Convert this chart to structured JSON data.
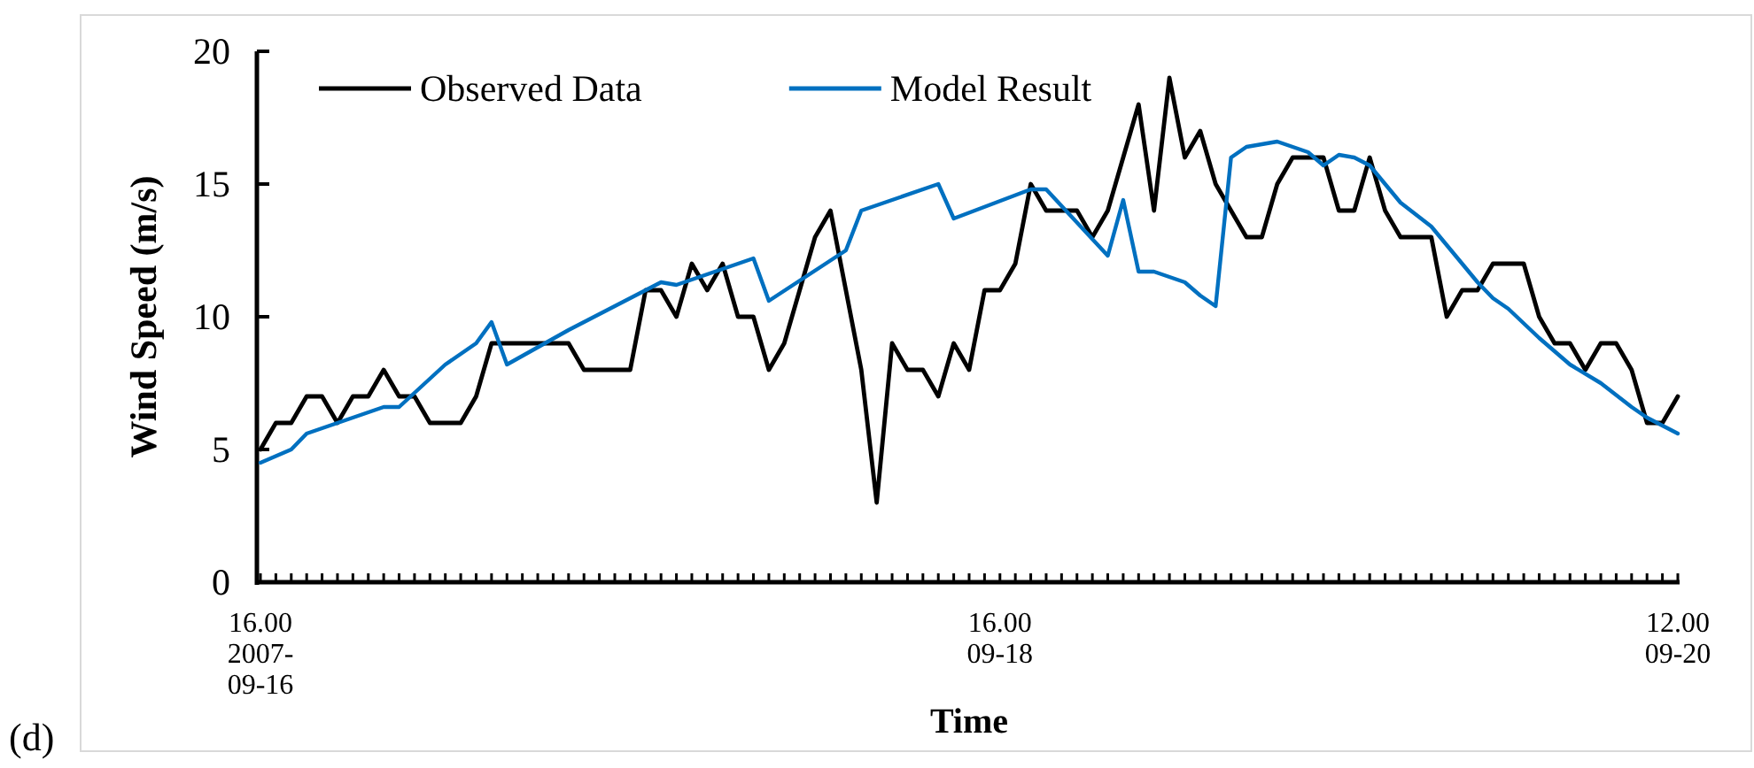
{
  "chart_data": {
    "type": "line",
    "xlabel": "Time",
    "ylabel": "Wind Speed (m/s)",
    "annotations": [
      "(d)"
    ],
    "legend": "top left",
    "xlim": [
      "2007-09-16T16:00",
      "2007-09-20T12:00"
    ],
    "ylim": [
      0,
      20
    ],
    "yticks": [
      0,
      5,
      10,
      15,
      20
    ],
    "xticks": [
      {
        "value": "2007-09-16T16:00",
        "label": "16.00\n2007-\n09-16"
      },
      {
        "value": "2007-09-16T17:00",
        "label": null
      },
      {
        "value": "2007-09-16T18:00",
        "label": null
      },
      {
        "value": "2007-09-16T19:00",
        "label": null
      },
      {
        "value": "2007-09-16T20:00",
        "label": null
      },
      {
        "value": "2007-09-16T21:00",
        "label": null
      },
      {
        "value": "2007-09-16T22:00",
        "label": null
      },
      {
        "value": "2007-09-16T23:00",
        "label": null
      },
      {
        "value": "2007-09-17T00:00",
        "label": null
      },
      {
        "value": "2007-09-17T01:00",
        "label": null
      },
      {
        "value": "2007-09-17T02:00",
        "label": null
      },
      {
        "value": "2007-09-17T03:00",
        "label": null
      },
      {
        "value": "2007-09-17T04:00",
        "label": null
      },
      {
        "value": "2007-09-17T05:00",
        "label": null
      },
      {
        "value": "2007-09-17T06:00",
        "label": null
      },
      {
        "value": "2007-09-17T07:00",
        "label": null
      },
      {
        "value": "2007-09-17T08:00",
        "label": null
      },
      {
        "value": "2007-09-17T09:00",
        "label": null
      },
      {
        "value": "2007-09-17T10:00",
        "label": null
      },
      {
        "value": "2007-09-17T11:00",
        "label": null
      },
      {
        "value": "2007-09-17T12:00",
        "label": null
      },
      {
        "value": "2007-09-17T13:00",
        "label": null
      },
      {
        "value": "2007-09-17T14:00",
        "label": null
      },
      {
        "value": "2007-09-17T15:00",
        "label": null
      },
      {
        "value": "2007-09-17T16:00",
        "label": null
      },
      {
        "value": "2007-09-17T17:00",
        "label": null
      },
      {
        "value": "2007-09-17T18:00",
        "label": null
      },
      {
        "value": "2007-09-17T19:00",
        "label": null
      },
      {
        "value": "2007-09-17T20:00",
        "label": null
      },
      {
        "value": "2007-09-17T21:00",
        "label": null
      },
      {
        "value": "2007-09-17T22:00",
        "label": null
      },
      {
        "value": "2007-09-17T23:00",
        "label": null
      },
      {
        "value": "2007-09-18T00:00",
        "label": null
      },
      {
        "value": "2007-09-18T01:00",
        "label": null
      },
      {
        "value": "2007-09-18T02:00",
        "label": null
      },
      {
        "value": "2007-09-18T03:00",
        "label": null
      },
      {
        "value": "2007-09-18T04:00",
        "label": null
      },
      {
        "value": "2007-09-18T05:00",
        "label": null
      },
      {
        "value": "2007-09-18T06:00",
        "label": null
      },
      {
        "value": "2007-09-18T07:00",
        "label": null
      },
      {
        "value": "2007-09-18T08:00",
        "label": null
      },
      {
        "value": "2007-09-18T09:00",
        "label": null
      },
      {
        "value": "2007-09-18T10:00",
        "label": null
      },
      {
        "value": "2007-09-18T11:00",
        "label": null
      },
      {
        "value": "2007-09-18T12:00",
        "label": null
      },
      {
        "value": "2007-09-18T13:00",
        "label": null
      },
      {
        "value": "2007-09-18T14:00",
        "label": null
      },
      {
        "value": "2007-09-18T15:00",
        "label": null
      },
      {
        "value": "2007-09-18T16:00",
        "label": "16.00\n09-18"
      },
      {
        "value": "2007-09-18T17:00",
        "label": null
      },
      {
        "value": "2007-09-18T18:00",
        "label": null
      },
      {
        "value": "2007-09-18T19:00",
        "label": null
      },
      {
        "value": "2007-09-18T20:00",
        "label": null
      },
      {
        "value": "2007-09-18T21:00",
        "label": null
      },
      {
        "value": "2007-09-18T22:00",
        "label": null
      },
      {
        "value": "2007-09-18T23:00",
        "label": null
      },
      {
        "value": "2007-09-19T00:00",
        "label": null
      },
      {
        "value": "2007-09-19T01:00",
        "label": null
      },
      {
        "value": "2007-09-19T02:00",
        "label": null
      },
      {
        "value": "2007-09-19T03:00",
        "label": null
      },
      {
        "value": "2007-09-19T04:00",
        "label": null
      },
      {
        "value": "2007-09-19T05:00",
        "label": null
      },
      {
        "value": "2007-09-19T06:00",
        "label": null
      },
      {
        "value": "2007-09-19T07:00",
        "label": null
      },
      {
        "value": "2007-09-19T08:00",
        "label": null
      },
      {
        "value": "2007-09-19T09:00",
        "label": null
      },
      {
        "value": "2007-09-19T10:00",
        "label": null
      },
      {
        "value": "2007-09-19T11:00",
        "label": null
      },
      {
        "value": "2007-09-19T12:00",
        "label": null
      },
      {
        "value": "2007-09-19T13:00",
        "label": null
      },
      {
        "value": "2007-09-19T14:00",
        "label": null
      },
      {
        "value": "2007-09-19T15:00",
        "label": null
      },
      {
        "value": "2007-09-19T16:00",
        "label": null
      },
      {
        "value": "2007-09-19T17:00",
        "label": null
      },
      {
        "value": "2007-09-19T18:00",
        "label": null
      },
      {
        "value": "2007-09-19T19:00",
        "label": null
      },
      {
        "value": "2007-09-19T20:00",
        "label": null
      },
      {
        "value": "2007-09-19T21:00",
        "label": null
      },
      {
        "value": "2007-09-19T22:00",
        "label": null
      },
      {
        "value": "2007-09-19T23:00",
        "label": null
      },
      {
        "value": "2007-09-20T00:00",
        "label": null
      },
      {
        "value": "2007-09-20T01:00",
        "label": null
      },
      {
        "value": "2007-09-20T02:00",
        "label": null
      },
      {
        "value": "2007-09-20T03:00",
        "label": null
      },
      {
        "value": "2007-09-20T04:00",
        "label": null
      },
      {
        "value": "2007-09-20T05:00",
        "label": null
      },
      {
        "value": "2007-09-20T06:00",
        "label": null
      },
      {
        "value": "2007-09-20T07:00",
        "label": null
      },
      {
        "value": "2007-09-20T08:00",
        "label": null
      },
      {
        "value": "2007-09-20T09:00",
        "label": null
      },
      {
        "value": "2007-09-20T10:00",
        "label": null
      },
      {
        "value": "2007-09-20T11:00",
        "label": null
      },
      {
        "value": "2007-09-20T12:00",
        "label": "12.00\n09-20"
      }
    ],
    "x": [
      "2007-09-16T16:00",
      "2007-09-16T17:00",
      "2007-09-16T18:00",
      "2007-09-16T19:00",
      "2007-09-16T20:00",
      "2007-09-16T21:00",
      "2007-09-16T22:00",
      "2007-09-16T23:00",
      "2007-09-17T00:00",
      "2007-09-17T01:00",
      "2007-09-17T02:00",
      "2007-09-17T03:00",
      "2007-09-17T04:00",
      "2007-09-17T05:00",
      "2007-09-17T06:00",
      "2007-09-17T07:00",
      "2007-09-17T08:00",
      "2007-09-17T09:00",
      "2007-09-17T10:00",
      "2007-09-17T11:00",
      "2007-09-17T12:00",
      "2007-09-17T13:00",
      "2007-09-17T14:00",
      "2007-09-17T15:00",
      "2007-09-17T16:00",
      "2007-09-17T17:00",
      "2007-09-17T18:00",
      "2007-09-17T19:00",
      "2007-09-17T20:00",
      "2007-09-17T21:00",
      "2007-09-17T22:00",
      "2007-09-17T23:00",
      "2007-09-18T00:00",
      "2007-09-18T01:00",
      "2007-09-18T02:00",
      "2007-09-18T03:00",
      "2007-09-18T04:00",
      "2007-09-18T05:00",
      "2007-09-18T06:00",
      "2007-09-18T07:00",
      "2007-09-18T08:00",
      "2007-09-18T09:00",
      "2007-09-18T10:00",
      "2007-09-18T11:00",
      "2007-09-18T12:00",
      "2007-09-18T13:00",
      "2007-09-18T14:00",
      "2007-09-18T15:00",
      "2007-09-18T16:00",
      "2007-09-18T17:00",
      "2007-09-18T18:00",
      "2007-09-18T19:00",
      "2007-09-18T20:00",
      "2007-09-18T21:00",
      "2007-09-18T22:00",
      "2007-09-18T23:00",
      "2007-09-19T00:00",
      "2007-09-19T01:00",
      "2007-09-19T02:00",
      "2007-09-19T03:00",
      "2007-09-19T04:00",
      "2007-09-19T05:00",
      "2007-09-19T06:00",
      "2007-09-19T07:00",
      "2007-09-19T08:00",
      "2007-09-19T09:00",
      "2007-09-19T10:00",
      "2007-09-19T11:00",
      "2007-09-19T12:00",
      "2007-09-19T13:00",
      "2007-09-19T14:00",
      "2007-09-19T15:00",
      "2007-09-19T16:00",
      "2007-09-19T17:00",
      "2007-09-19T18:00",
      "2007-09-19T19:00",
      "2007-09-19T20:00",
      "2007-09-19T21:00",
      "2007-09-19T22:00",
      "2007-09-19T23:00",
      "2007-09-20T00:00",
      "2007-09-20T01:00",
      "2007-09-20T02:00",
      "2007-09-20T03:00",
      "2007-09-20T04:00",
      "2007-09-20T05:00",
      "2007-09-20T06:00",
      "2007-09-20T07:00",
      "2007-09-20T08:00",
      "2007-09-20T09:00",
      "2007-09-20T10:00",
      "2007-09-20T11:00",
      "2007-09-20T12:00"
    ],
    "series": [
      {
        "name": "Observed Data",
        "color": "#000000",
        "values": [
          5,
          6,
          6,
          7,
          7,
          6,
          7,
          7,
          8,
          7,
          7,
          6,
          6,
          6,
          7,
          9,
          9,
          9,
          9,
          9,
          9,
          8,
          8,
          8,
          8,
          11,
          11,
          10,
          12,
          11,
          12,
          10,
          10,
          8,
          9,
          11,
          13,
          14,
          11,
          8,
          3,
          9,
          8,
          8,
          7,
          9,
          8,
          11,
          11,
          12,
          15,
          14,
          14,
          14,
          13,
          14,
          16,
          18,
          14,
          19,
          16,
          17,
          15,
          14,
          13,
          13,
          15,
          16,
          16,
          16,
          14,
          14,
          16,
          14,
          13,
          13,
          13,
          10,
          11,
          11,
          12,
          12,
          12,
          10,
          9,
          9,
          8,
          9,
          9,
          8,
          6,
          6,
          7
        ]
      },
      {
        "name": "Model Result",
        "color": "#0070c0",
        "x": [
          "2007-09-16T16:00",
          "2007-09-16T18:00",
          "2007-09-16T19:00",
          "2007-09-16T21:00",
          "2007-09-17T00:00",
          "2007-09-17T01:00",
          "2007-09-17T04:00",
          "2007-09-17T06:00",
          "2007-09-17T07:00",
          "2007-09-17T08:00",
          "2007-09-17T12:00",
          "2007-09-17T18:00",
          "2007-09-17T19:00",
          "2007-09-18T00:00",
          "2007-09-18T01:00",
          "2007-09-18T06:00",
          "2007-09-18T07:00",
          "2007-09-18T12:00",
          "2007-09-18T13:00",
          "2007-09-18T18:00",
          "2007-09-18T19:00",
          "2007-09-18T23:00",
          "2007-09-19T00:00",
          "2007-09-19T01:00",
          "2007-09-19T02:00",
          "2007-09-19T03:00",
          "2007-09-19T04:00",
          "2007-09-19T05:00",
          "2007-09-19T06:00",
          "2007-09-19T07:00",
          "2007-09-19T08:00",
          "2007-09-19T10:00",
          "2007-09-19T12:00",
          "2007-09-19T13:00",
          "2007-09-19T14:00",
          "2007-09-19T15:00",
          "2007-09-19T16:00",
          "2007-09-19T18:00",
          "2007-09-19T20:00",
          "2007-09-19T22:00",
          "2007-09-19T23:00",
          "2007-09-20T00:00",
          "2007-09-20T01:00",
          "2007-09-20T03:00",
          "2007-09-20T05:00",
          "2007-09-20T07:00",
          "2007-09-20T09:00",
          "2007-09-20T10:00",
          "2007-09-20T12:00"
        ],
        "values": [
          4.5,
          5.0,
          5.6,
          6.0,
          6.6,
          6.6,
          8.2,
          9.0,
          9.8,
          8.2,
          9.5,
          11.3,
          11.2,
          12.2,
          10.6,
          12.5,
          14.0,
          15.0,
          13.7,
          14.8,
          14.8,
          12.3,
          14.4,
          11.7,
          11.7,
          11.5,
          11.3,
          10.8,
          10.4,
          16.0,
          16.4,
          16.6,
          16.2,
          15.7,
          16.1,
          16.0,
          15.7,
          14.3,
          13.4,
          12.0,
          11.3,
          10.7,
          10.3,
          9.2,
          8.2,
          7.5,
          6.6,
          6.2,
          5.6
        ]
      }
    ]
  }
}
